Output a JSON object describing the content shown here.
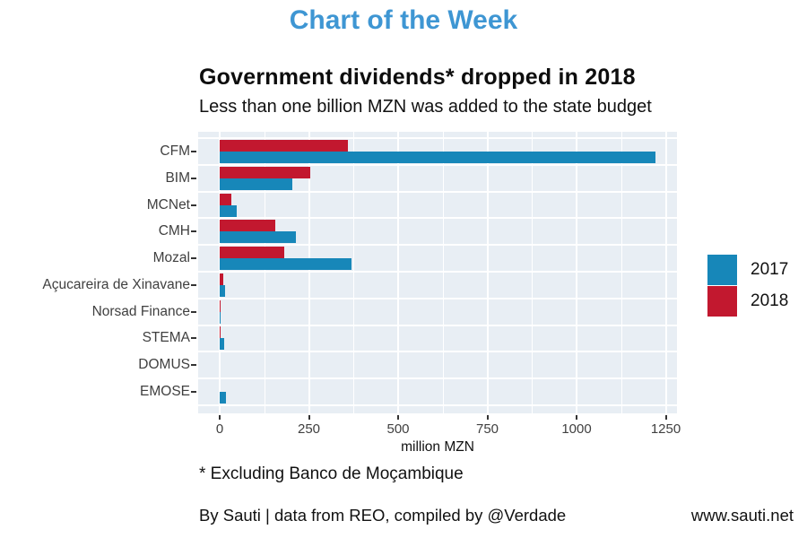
{
  "header": {
    "title": "Chart of the Week"
  },
  "chart": {
    "title": "Government dividends* dropped in 2018",
    "subtitle": "Less than one billion MZN was added to the state budget",
    "xlabel": "million MZN"
  },
  "legend": {
    "items": [
      {
        "label": "2017",
        "color": "#1787b9"
      },
      {
        "label": "2018",
        "color": "#c2182f"
      }
    ]
  },
  "chart_data": {
    "type": "bar",
    "orientation": "horizontal",
    "title": "Government dividends* dropped in 2018",
    "subtitle": "Less than one billion MZN was added to the state budget",
    "xlabel": "million MZN",
    "ylabel": "",
    "categories": [
      "CFM",
      "BIM",
      "MCNet",
      "CMH",
      "Mozal",
      "Açucareira de Xinavane",
      "Norsad Finance",
      "STEMA",
      "DOMUS",
      "EMOSE"
    ],
    "series": [
      {
        "name": "2017",
        "color": "#1787b9",
        "values": [
          1221,
          203,
          48,
          214,
          369,
          15,
          1,
          12,
          0,
          18
        ]
      },
      {
        "name": "2018",
        "color": "#c2182f",
        "values": [
          360,
          253,
          33,
          155,
          182,
          10,
          3,
          3,
          0,
          0
        ]
      }
    ],
    "xlim": [
      0,
      1280
    ],
    "xticks": [
      0,
      250,
      500,
      750,
      1000,
      1250
    ],
    "grid": true,
    "panel_background": "#e8eef4",
    "gridline_color": "#ffffff",
    "legend_position": "right"
  },
  "footer": {
    "footnote": "* Excluding Banco de Moçambique",
    "credit": "By Sauti | data from REO, compiled by @Verdade",
    "website": "www.sauti.net"
  }
}
